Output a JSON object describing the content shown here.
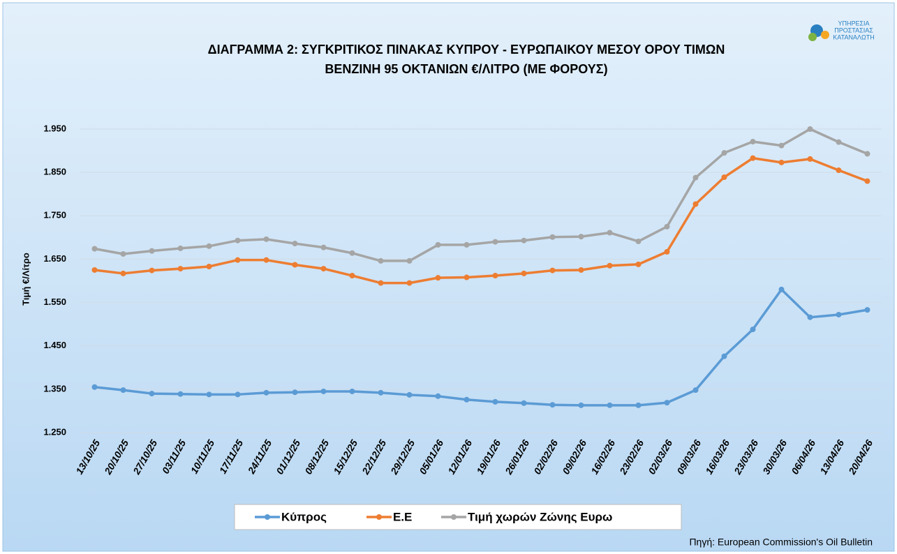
{
  "logo": [
    "ΥΠΗΡΕΣΙΑ",
    "ΠΡΟΣΤΑΣΙΑΣ",
    "ΚΑΤΑΝΑΛΩΤΗ"
  ],
  "source": "Πηγή: European Commission's Oil Bulletin",
  "chart_data": {
    "type": "line",
    "title": [
      "ΔΙΑΓΡΑΜΜΑ 2: ΣΥΓΚΡΙΤΙΚΟΣ ΠΙΝΑΚΑΣ ΚΥΠΡΟΥ - ΕΥΡΩΠΑΙΚΟΥ ΜΕΣΟΥ ΟΡΟΥ ΤΙΜΩΝ",
      "ΒΕΝΖΙΝΗ 95 ΟΚΤΑΝΙΩΝ €/ΛΙΤΡΟ (ΜΕ ΦΟΡΟΥΣ)"
    ],
    "y_label": "Τιμή €/Λίτρο",
    "categories": [
      "13/10/25",
      "20/10/25",
      "27/10/25",
      "03/11/25",
      "10/11/25",
      "17/11/25",
      "24/11/25",
      "01/12/25",
      "08/12/25",
      "15/12/25",
      "22/12/25",
      "29/12/25",
      "05/01/26",
      "12/01/26",
      "19/01/26",
      "26/01/26",
      "02/02/26",
      "09/02/26",
      "16/02/26",
      "23/02/26",
      "02/03/26",
      "09/03/26",
      "16/03/26",
      "23/03/26",
      "30/03/26",
      "06/04/26",
      "13/04/26",
      "20/04/26"
    ],
    "series": [
      {
        "name": "Κύπρος",
        "color": "#5b9bd5",
        "values": [
          1.355,
          1.348,
          1.34,
          1.339,
          1.338,
          1.338,
          1.342,
          1.343,
          1.345,
          1.345,
          1.342,
          1.337,
          1.334,
          1.326,
          1.321,
          1.318,
          1.314,
          1.313,
          1.313,
          1.313,
          1.319,
          1.348,
          1.426,
          1.488,
          1.58,
          1.516,
          1.522,
          1.533
        ]
      },
      {
        "name": "Ε.Ε",
        "color": "#ed7d31",
        "values": [
          1.625,
          1.617,
          1.624,
          1.628,
          1.633,
          1.648,
          1.648,
          1.637,
          1.628,
          1.612,
          1.595,
          1.595,
          1.607,
          1.608,
          1.612,
          1.617,
          1.624,
          1.625,
          1.635,
          1.638,
          1.667,
          1.777,
          1.839,
          1.883,
          1.873,
          1.881,
          1.855,
          1.83
        ]
      },
      {
        "name": "Τιμή χωρών Ζώνης Ευρω",
        "color": "#a5a5a5",
        "values": [
          1.674,
          1.662,
          1.669,
          1.675,
          1.68,
          1.693,
          1.696,
          1.686,
          1.677,
          1.664,
          1.646,
          1.646,
          1.683,
          1.683,
          1.69,
          1.693,
          1.701,
          1.702,
          1.711,
          1.691,
          1.725,
          1.838,
          1.895,
          1.921,
          1.912,
          1.95,
          1.92,
          1.893
        ]
      }
    ],
    "ylim": [
      1.25,
      1.95
    ],
    "yticks": [
      {
        "value": 1.25,
        "label": "1.250"
      },
      {
        "value": 1.35,
        "label": "1.350"
      },
      {
        "value": 1.45,
        "label": "1.450"
      },
      {
        "value": 1.55,
        "label": "1.550"
      },
      {
        "value": 1.65,
        "label": "1.650"
      },
      {
        "value": 1.75,
        "label": "1.750"
      },
      {
        "value": 1.85,
        "label": "1.850"
      },
      {
        "value": 1.95,
        "label": "1.950"
      }
    ],
    "grid": true
  }
}
